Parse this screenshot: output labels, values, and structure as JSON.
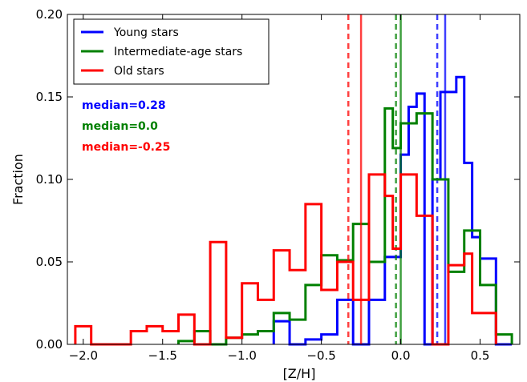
{
  "chart_data": {
    "type": "histogram",
    "xlabel": "[Z/H]",
    "ylabel": "Fraction",
    "xlim": [
      -2.1,
      0.75
    ],
    "ylim": [
      0.0,
      0.2
    ],
    "grid": false,
    "legend_position": "top-left",
    "bin_edges": [
      -2.1,
      -2.0,
      -1.9,
      -1.8,
      -1.7,
      -1.6,
      -1.5,
      -1.4,
      -1.3,
      -1.2,
      -1.1,
      -1.0,
      -0.9,
      -0.8,
      -0.7,
      -0.6,
      -0.5,
      -0.4,
      -0.3,
      -0.2,
      -0.1,
      0.0,
      0.1,
      0.2,
      0.3,
      0.4,
      0.5,
      0.6,
      0.7
    ],
    "x_ticks": [
      -2.0,
      -1.5,
      -1.0,
      -0.5,
      0.0,
      0.5
    ],
    "x_tick_labels": [
      "−2.0",
      "−1.5",
      "−1.0",
      "−0.5",
      "0.0",
      "0.5"
    ],
    "y_ticks": [
      0.0,
      0.05,
      0.1,
      0.15,
      0.2
    ],
    "y_tick_labels": [
      "0.00",
      "0.05",
      "0.10",
      "0.15",
      "0.20"
    ],
    "series": [
      {
        "name": "Young stars",
        "color": "#0000ff",
        "bin_edges": [
          -0.8,
          -0.7,
          -0.6,
          -0.5,
          -0.4,
          -0.3,
          -0.2,
          -0.1,
          0.0,
          0.05,
          0.1,
          0.15,
          0.2,
          0.25,
          0.3,
          0.35,
          0.4,
          0.45,
          0.5,
          0.6,
          0.7
        ],
        "values": [
          0.014,
          0.0,
          0.003,
          0.006,
          0.027,
          0.0,
          0.027,
          0.053,
          0.115,
          0.144,
          0.152,
          0.0,
          0.1,
          0.153,
          0.153,
          0.162,
          0.11,
          0.065,
          0.052,
          0.0
        ],
        "median": 0.28,
        "mean": 0.23
      },
      {
        "name": "Intermediate-age stars",
        "color": "#008000",
        "bin_edges": [
          -1.4,
          -1.3,
          -1.2,
          -1.1,
          -1.0,
          -0.9,
          -0.8,
          -0.7,
          -0.6,
          -0.5,
          -0.4,
          -0.3,
          -0.2,
          -0.1,
          -0.05,
          0.0,
          0.1,
          0.2,
          0.3,
          0.4,
          0.45,
          0.5,
          0.6,
          0.7
        ],
        "values": [
          0.002,
          0.008,
          0.0,
          0.004,
          0.006,
          0.008,
          0.019,
          0.015,
          0.036,
          0.054,
          0.051,
          0.073,
          0.05,
          0.143,
          0.119,
          0.134,
          0.14,
          0.1,
          0.044,
          0.069,
          0.069,
          0.036,
          0.006
        ],
        "median": 0.0,
        "mean": -0.03
      },
      {
        "name": "Old stars",
        "color": "#ff0000",
        "bin_edges": [
          -2.05,
          -1.95,
          -1.7,
          -1.6,
          -1.5,
          -1.4,
          -1.3,
          -1.2,
          -1.1,
          -1.0,
          -0.9,
          -0.8,
          -0.7,
          -0.6,
          -0.5,
          -0.4,
          -0.3,
          -0.2,
          -0.1,
          -0.05,
          0.0,
          0.1,
          0.2,
          0.3,
          0.4,
          0.45,
          0.5,
          0.6
        ],
        "values": [
          0.011,
          0.0,
          0.008,
          0.011,
          0.008,
          0.018,
          0.0,
          0.062,
          0.004,
          0.037,
          0.027,
          0.057,
          0.045,
          0.085,
          0.033,
          0.05,
          0.027,
          0.103,
          0.09,
          0.058,
          0.103,
          0.078,
          0.0,
          0.048,
          0.055,
          0.019,
          0.019
        ],
        "median": -0.25,
        "mean": -0.33
      }
    ],
    "annotations": [
      {
        "text": "median=0.28",
        "color": "#0000ff"
      },
      {
        "text": "median=0.0",
        "color": "#008000"
      },
      {
        "text": "median=-0.25",
        "color": "#ff0000"
      }
    ]
  }
}
